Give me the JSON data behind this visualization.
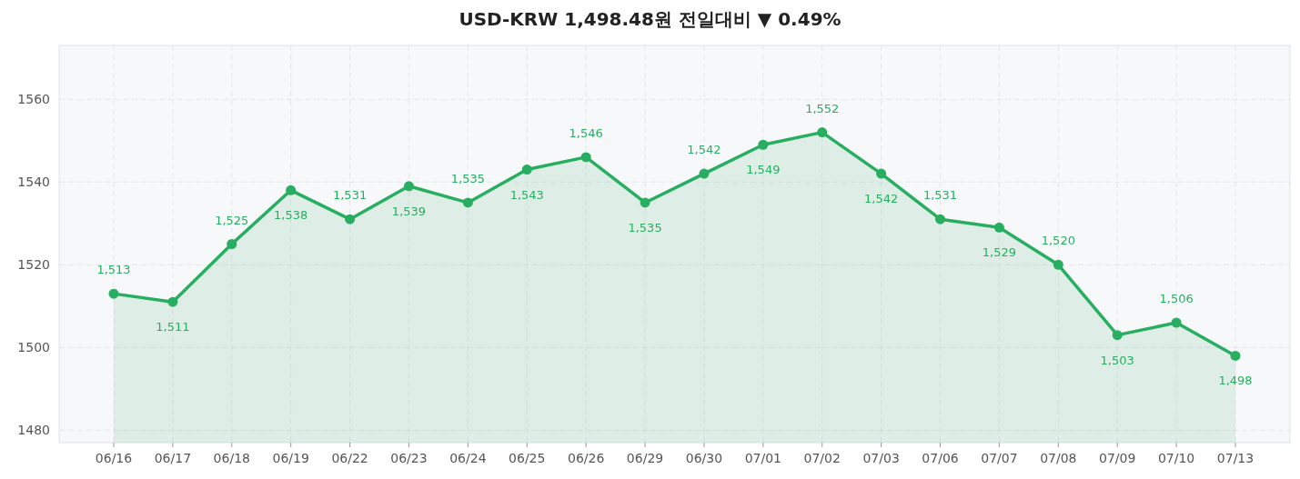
{
  "chart_data": {
    "type": "area",
    "title": "USD-KRW  1,498.48원  전일대비 ▼ 0.49%",
    "categories": [
      "06/16",
      "06/17",
      "06/18",
      "06/19",
      "06/22",
      "06/23",
      "06/24",
      "06/25",
      "06/26",
      "06/29",
      "06/30",
      "07/01",
      "07/02",
      "07/03",
      "07/06",
      "07/07",
      "07/08",
      "07/09",
      "07/10",
      "07/13"
    ],
    "values": [
      1513,
      1511,
      1525,
      1538,
      1531,
      1539,
      1535,
      1543,
      1546,
      1535,
      1542,
      1549,
      1552,
      1542,
      1531,
      1529,
      1520,
      1503,
      1506,
      1498
    ],
    "value_labels": [
      "1,513",
      "1,511",
      "1,525",
      "1,538",
      "1,531",
      "1,539",
      "1,535",
      "1,543",
      "1,546",
      "1,535",
      "1,542",
      "1,549",
      "1,552",
      "1,542",
      "1,531",
      "1,529",
      "1,520",
      "1,503",
      "1,506",
      "1,498"
    ],
    "color": "#27ae60",
    "ylim": [
      1477,
      1573
    ],
    "yticks": [
      1480,
      1500,
      1520,
      1540,
      1560
    ],
    "grid": true,
    "marker": "circle"
  }
}
